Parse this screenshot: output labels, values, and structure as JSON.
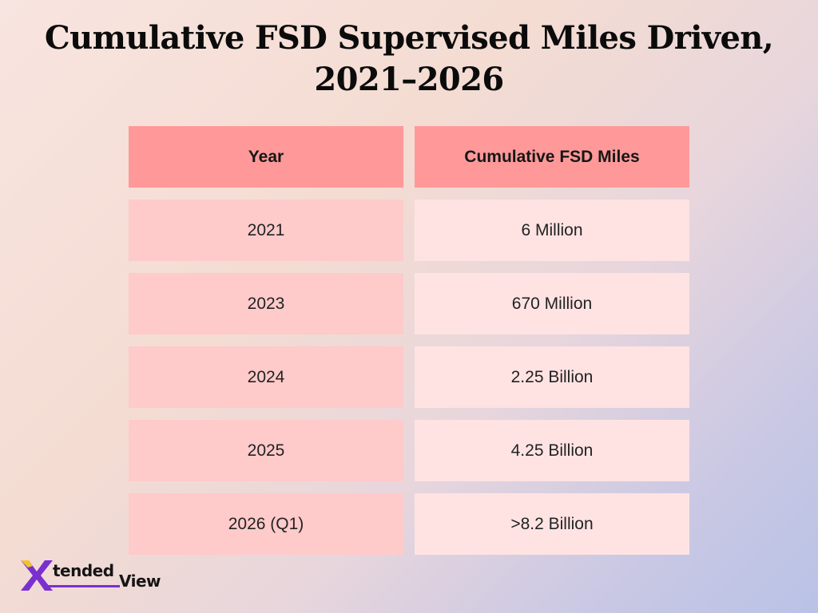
{
  "title_lines": [
    "Cumulative FSD Supervised Miles Driven,",
    "2021–2026"
  ],
  "table": {
    "headers": [
      "Year",
      "Cumulative FSD Miles"
    ],
    "rows": [
      {
        "year": "2021",
        "miles": "6 Million"
      },
      {
        "year": "2023",
        "miles": "670 Million"
      },
      {
        "year": "2024",
        "miles": "2.25 Billion"
      },
      {
        "year": "2025",
        "miles": "4.25 Billion"
      },
      {
        "year": "2026 (Q1)",
        "miles": ">8.2 Billion"
      }
    ]
  },
  "chart_data": {
    "type": "table",
    "title": "Cumulative FSD Supervised Miles Driven, 2021–2026",
    "columns": [
      "Year",
      "Cumulative FSD Miles"
    ],
    "rows": [
      [
        "2021",
        "6 Million"
      ],
      [
        "2023",
        "670 Million"
      ],
      [
        "2024",
        "2.25 Billion"
      ],
      [
        "2025",
        "4.25 Billion"
      ],
      [
        "2026 (Q1)",
        ">8.2 Billion"
      ]
    ]
  },
  "logo": {
    "text_part1": "tended",
    "text_part2": "View",
    "x_color": "#7a2fd0",
    "x_accent_color": "#f2c230"
  },
  "colors": {
    "header_cell": "#ff9999",
    "year_cell": "#ffcaca",
    "miles_cell": "#ffe3e3"
  }
}
